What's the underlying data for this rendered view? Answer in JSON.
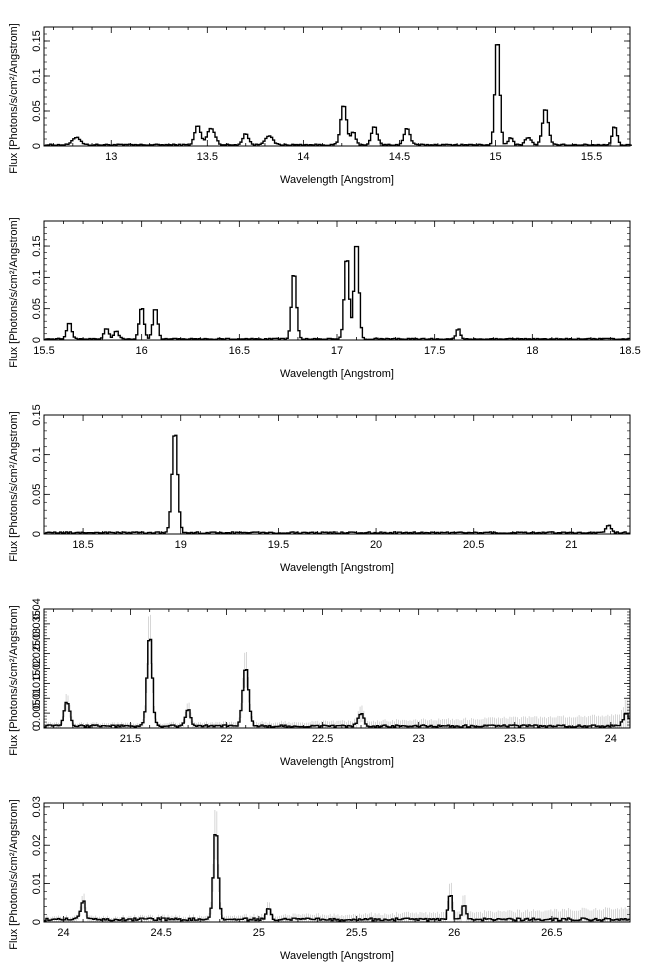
{
  "chart_data": [
    {
      "type": "line",
      "xlabel": "Wavelength [Angstrom]",
      "ylabel": "Flux [Photons/s/cm²/Angstrom]",
      "xlim": [
        12.65,
        15.7
      ],
      "ylim": [
        0,
        0.17
      ],
      "xticks": [
        13,
        13.5,
        14,
        14.5,
        15,
        15.5
      ],
      "xtick_labels": [
        "13",
        "13.5",
        "14",
        "14.5",
        "15",
        "15.5"
      ],
      "yticks": [
        0,
        0.05,
        0.1,
        0.15
      ],
      "ytick_labels": [
        "0",
        "0.05",
        "0.1",
        "0.15"
      ],
      "baseline": 0.002,
      "bin": 0.01,
      "errors": false,
      "lines": [
        {
          "x": 12.82,
          "peak": 0.011,
          "w": 0.02
        },
        {
          "x": 13.45,
          "peak": 0.028,
          "w": 0.015
        },
        {
          "x": 13.52,
          "peak": 0.024,
          "w": 0.02
        },
        {
          "x": 13.7,
          "peak": 0.016,
          "w": 0.015
        },
        {
          "x": 13.82,
          "peak": 0.013,
          "w": 0.02
        },
        {
          "x": 14.21,
          "peak": 0.058,
          "w": 0.015
        },
        {
          "x": 14.26,
          "peak": 0.018,
          "w": 0.012
        },
        {
          "x": 14.37,
          "peak": 0.026,
          "w": 0.015
        },
        {
          "x": 14.54,
          "peak": 0.024,
          "w": 0.015
        },
        {
          "x": 15.01,
          "peak": 0.155,
          "w": 0.012
        },
        {
          "x": 15.08,
          "peak": 0.01,
          "w": 0.012
        },
        {
          "x": 15.17,
          "peak": 0.011,
          "w": 0.015
        },
        {
          "x": 15.26,
          "peak": 0.052,
          "w": 0.015
        },
        {
          "x": 15.62,
          "peak": 0.027,
          "w": 0.012
        }
      ]
    },
    {
      "type": "line",
      "xlabel": "Wavelength [Angstrom]",
      "ylabel": "Flux [Photons/s/cm²/Angstrom]",
      "xlim": [
        15.5,
        18.5
      ],
      "ylim": [
        0,
        0.19
      ],
      "xticks": [
        15.5,
        16,
        16.5,
        17,
        17.5,
        18,
        18.5
      ],
      "xtick_labels": [
        "15.5",
        "16",
        "16.5",
        "17",
        "17.5",
        "18",
        "18.5"
      ],
      "yticks": [
        0,
        0.05,
        0.1,
        0.15
      ],
      "ytick_labels": [
        "0",
        "0.05",
        "0.1",
        "0.15"
      ],
      "baseline": 0.002,
      "bin": 0.01,
      "errors": false,
      "lines": [
        {
          "x": 15.63,
          "peak": 0.027,
          "w": 0.012
        },
        {
          "x": 15.82,
          "peak": 0.018,
          "w": 0.012
        },
        {
          "x": 15.87,
          "peak": 0.013,
          "w": 0.012
        },
        {
          "x": 16.0,
          "peak": 0.052,
          "w": 0.012
        },
        {
          "x": 16.07,
          "peak": 0.05,
          "w": 0.012
        },
        {
          "x": 16.78,
          "peak": 0.11,
          "w": 0.012
        },
        {
          "x": 17.05,
          "peak": 0.135,
          "w": 0.012
        },
        {
          "x": 17.1,
          "peak": 0.16,
          "w": 0.012
        },
        {
          "x": 17.62,
          "peak": 0.017,
          "w": 0.01
        }
      ]
    },
    {
      "type": "line",
      "xlabel": "Wavelength [Angstrom]",
      "ylabel": "Flux [Photons/s/cm²/Angstrom]",
      "xlim": [
        18.3,
        21.3
      ],
      "ylim": [
        0,
        0.15
      ],
      "xticks": [
        18.5,
        19,
        19.5,
        20,
        20.5,
        21
      ],
      "xtick_labels": [
        "18.5",
        "19",
        "19.5",
        "20",
        "20.5",
        "21"
      ],
      "yticks": [
        0,
        0.05,
        0.1,
        0.15
      ],
      "ytick_labels": [
        "0",
        "0.05",
        "0.1",
        "0.15"
      ],
      "baseline": 0.002,
      "bin": 0.01,
      "errors": false,
      "lines": [
        {
          "x": 18.97,
          "peak": 0.13,
          "w": 0.014
        },
        {
          "x": 21.19,
          "peak": 0.01,
          "w": 0.012
        }
      ]
    },
    {
      "type": "line",
      "xlabel": "Wavelength [Angstrom]",
      "ylabel": "Flux [Photons/s/cm²/Angstrom]",
      "xlim": [
        21.05,
        24.1
      ],
      "ylim": [
        0,
        0.04
      ],
      "xticks": [
        21.5,
        22,
        22.5,
        23,
        23.5,
        24
      ],
      "xtick_labels": [
        "21.5",
        "22",
        "22.5",
        "23",
        "23.5",
        "24"
      ],
      "yticks": [
        0,
        0.005,
        0.01,
        0.015,
        0.02,
        0.025,
        0.03,
        0.035,
        0.04
      ],
      "ytick_labels": [
        "0",
        "0.005",
        "0.01",
        "0.015",
        "0.02",
        "0.025",
        "0.03",
        "0.035",
        "0.04"
      ],
      "baseline": 0.0008,
      "bin": 0.01,
      "errors": true,
      "lines": [
        {
          "x": 21.17,
          "peak": 0.008,
          "w": 0.015
        },
        {
          "x": 21.6,
          "peak": 0.031,
          "w": 0.013
        },
        {
          "x": 21.8,
          "peak": 0.006,
          "w": 0.012
        },
        {
          "x": 22.1,
          "peak": 0.02,
          "w": 0.015
        },
        {
          "x": 22.7,
          "peak": 0.004,
          "w": 0.015
        },
        {
          "x": 24.08,
          "peak": 0.004,
          "w": 0.015
        }
      ]
    },
    {
      "type": "line",
      "xlabel": "Wavelength [Angstrom]",
      "ylabel": "Flux [Photons/s/cm²/Angstrom]",
      "xlim": [
        23.9,
        26.9
      ],
      "ylim": [
        0,
        0.031
      ],
      "xticks": [
        24,
        24.5,
        25,
        25.5,
        26,
        26.5
      ],
      "xtick_labels": [
        "24",
        "24.5",
        "25",
        "25.5",
        "26",
        "26.5"
      ],
      "yticks": [
        0,
        0.01,
        0.02,
        0.03
      ],
      "ytick_labels": [
        "0",
        "0.01",
        "0.02",
        "0.03"
      ],
      "baseline": 0.0008,
      "bin": 0.01,
      "errors": true,
      "lines": [
        {
          "x": 24.1,
          "peak": 0.005,
          "w": 0.012
        },
        {
          "x": 24.78,
          "peak": 0.024,
          "w": 0.012
        },
        {
          "x": 25.05,
          "peak": 0.003,
          "w": 0.012
        },
        {
          "x": 25.98,
          "peak": 0.007,
          "w": 0.01
        },
        {
          "x": 26.05,
          "peak": 0.004,
          "w": 0.01
        }
      ]
    }
  ]
}
